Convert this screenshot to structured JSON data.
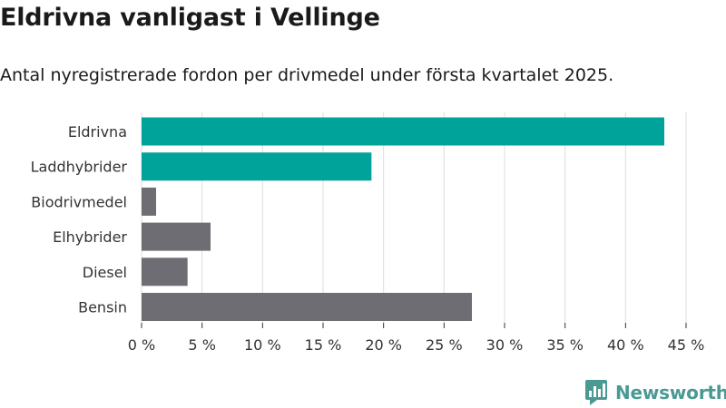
{
  "title": "Eldrivna vanligast i Vellinge",
  "subtitle": "Antal nyregistrerade fordon per drivmedel under första kvartalet 2025.",
  "brand": {
    "name": "Newsworthy",
    "icon": "newsworthy-logo-icon",
    "color": "#4a9a93"
  },
  "colors": {
    "highlight": "#00a39a",
    "default": "#6e6d73",
    "grid": "#dcdcdc"
  },
  "chart_data": {
    "type": "bar",
    "orientation": "horizontal",
    "categories": [
      "Eldrivna",
      "Laddhybrider",
      "Biodrivmedel",
      "Elhybrider",
      "Diesel",
      "Bensin"
    ],
    "values": [
      43.2,
      19.0,
      1.2,
      5.7,
      3.8,
      27.3
    ],
    "highlighted": [
      true,
      true,
      false,
      false,
      false,
      false
    ],
    "xlim": [
      0,
      45
    ],
    "xticks": [
      0,
      5,
      10,
      15,
      20,
      25,
      30,
      35,
      40,
      45
    ],
    "xtick_labels": [
      "0 %",
      "5 %",
      "10 %",
      "15 %",
      "20 %",
      "25 %",
      "30 %",
      "35 %",
      "40 %",
      "45 %"
    ],
    "grid": true,
    "legend": "none"
  }
}
